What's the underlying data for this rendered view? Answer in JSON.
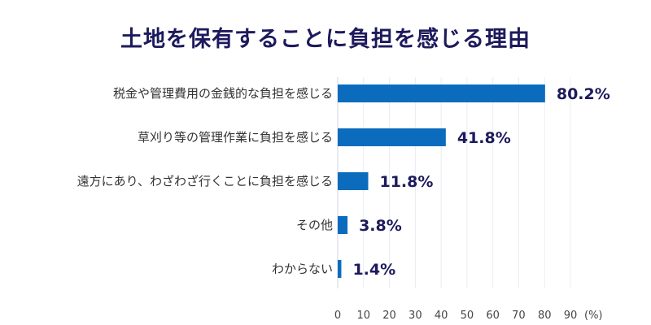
{
  "chart_data": {
    "type": "bar",
    "orientation": "horizontal",
    "title": "土地を保有することに負担を感じる理由",
    "categories": [
      "税金や管理費用の金銭的な負担を感じる",
      "草刈り等の管理作業に負担を感じる",
      "遠方にあり、わざわざ行くことに負担を感じる",
      "その他",
      "わからない"
    ],
    "values": [
      80.2,
      41.8,
      11.8,
      3.8,
      1.4
    ],
    "value_labels": [
      "80.2%",
      "41.8%",
      "11.8%",
      "3.8%",
      "1.4%"
    ],
    "xlim": [
      0,
      90
    ],
    "xticks": [
      "0",
      "10",
      "20",
      "30",
      "40",
      "50",
      "60",
      "70",
      "80",
      "90"
    ],
    "xunit": "(%)",
    "grid": true,
    "bar_color": "#0b6cbd"
  }
}
